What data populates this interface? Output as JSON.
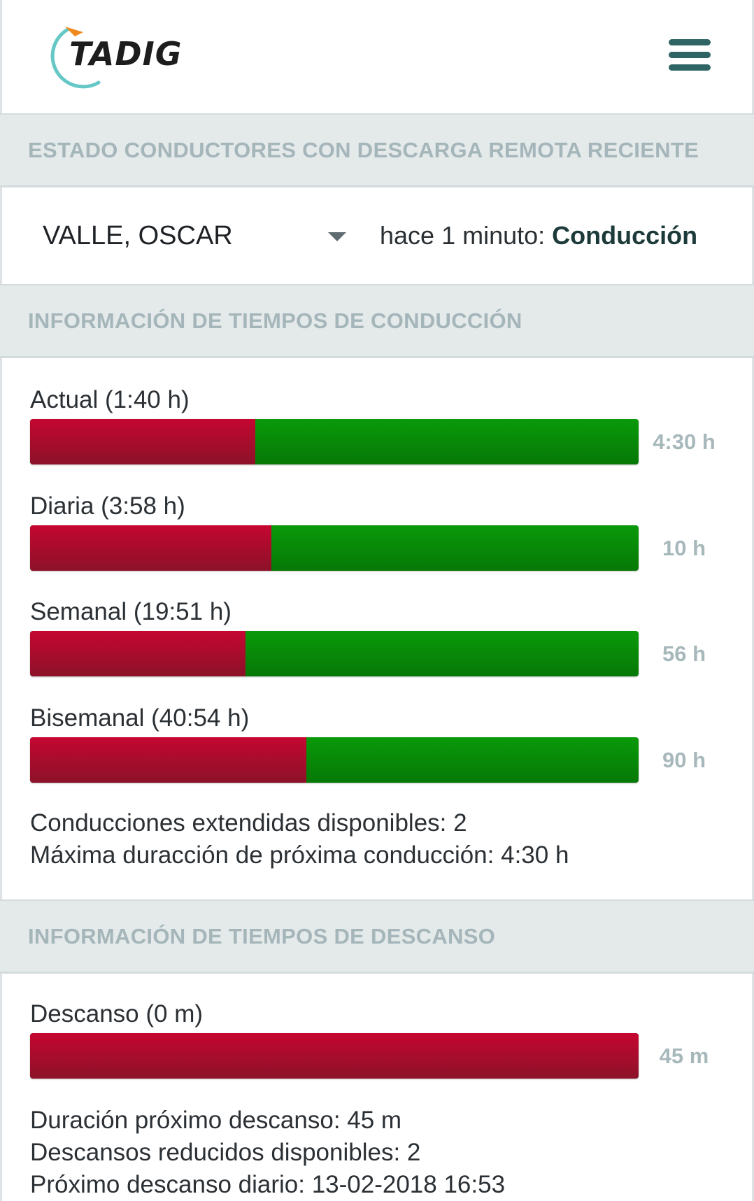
{
  "app": {
    "logo_text": "TADIG",
    "menu_icon": "hamburger-menu-icon",
    "colors": {
      "accent": "#2f6464",
      "consumed": "#b0062d",
      "remaining": "#078a07",
      "section_bg": "#e4e9ea",
      "section_text": "#a5b6ba"
    }
  },
  "driver_status": {
    "section_title": "ESTADO CONDUCTORES CON DESCARGA REMOTA RECIENTE",
    "driver_name": "VALLE, OSCAR",
    "status_prefix": "hace 1 minuto:",
    "status_activity": "Conducción"
  },
  "driving": {
    "section_title": "INFORMACIÓN DE TIEMPOS DE CONDUCCIÓN",
    "bars": [
      {
        "label": "Actual (1:40 h)",
        "max_label": "4:30 h",
        "consumed_fraction": 0.37
      },
      {
        "label": "Diaria (3:58 h)",
        "max_label": "10 h",
        "consumed_fraction": 0.397
      },
      {
        "label": "Semanal (19:51 h)",
        "max_label": "56 h",
        "consumed_fraction": 0.354
      },
      {
        "label": "Bisemanal (40:54 h)",
        "max_label": "90 h",
        "consumed_fraction": 0.454
      }
    ],
    "extended_available": "Conducciones extendidas disponibles: 2",
    "max_next_driving": "Máxima duracción de próxima conducción: 4:30 h"
  },
  "rest": {
    "section_title": "INFORMACIÓN DE TIEMPOS DE DESCANSO",
    "bars": [
      {
        "label": "Descanso (0 m)",
        "max_label": "45 m",
        "consumed_fraction": 1.0
      }
    ],
    "next_rest_duration": "Duración próximo descanso: 45 m",
    "reduced_rests_available": "Descansos reducidos disponibles: 2",
    "next_daily_rest": "Próximo descanso diario: 13-02-2018 16:53"
  }
}
